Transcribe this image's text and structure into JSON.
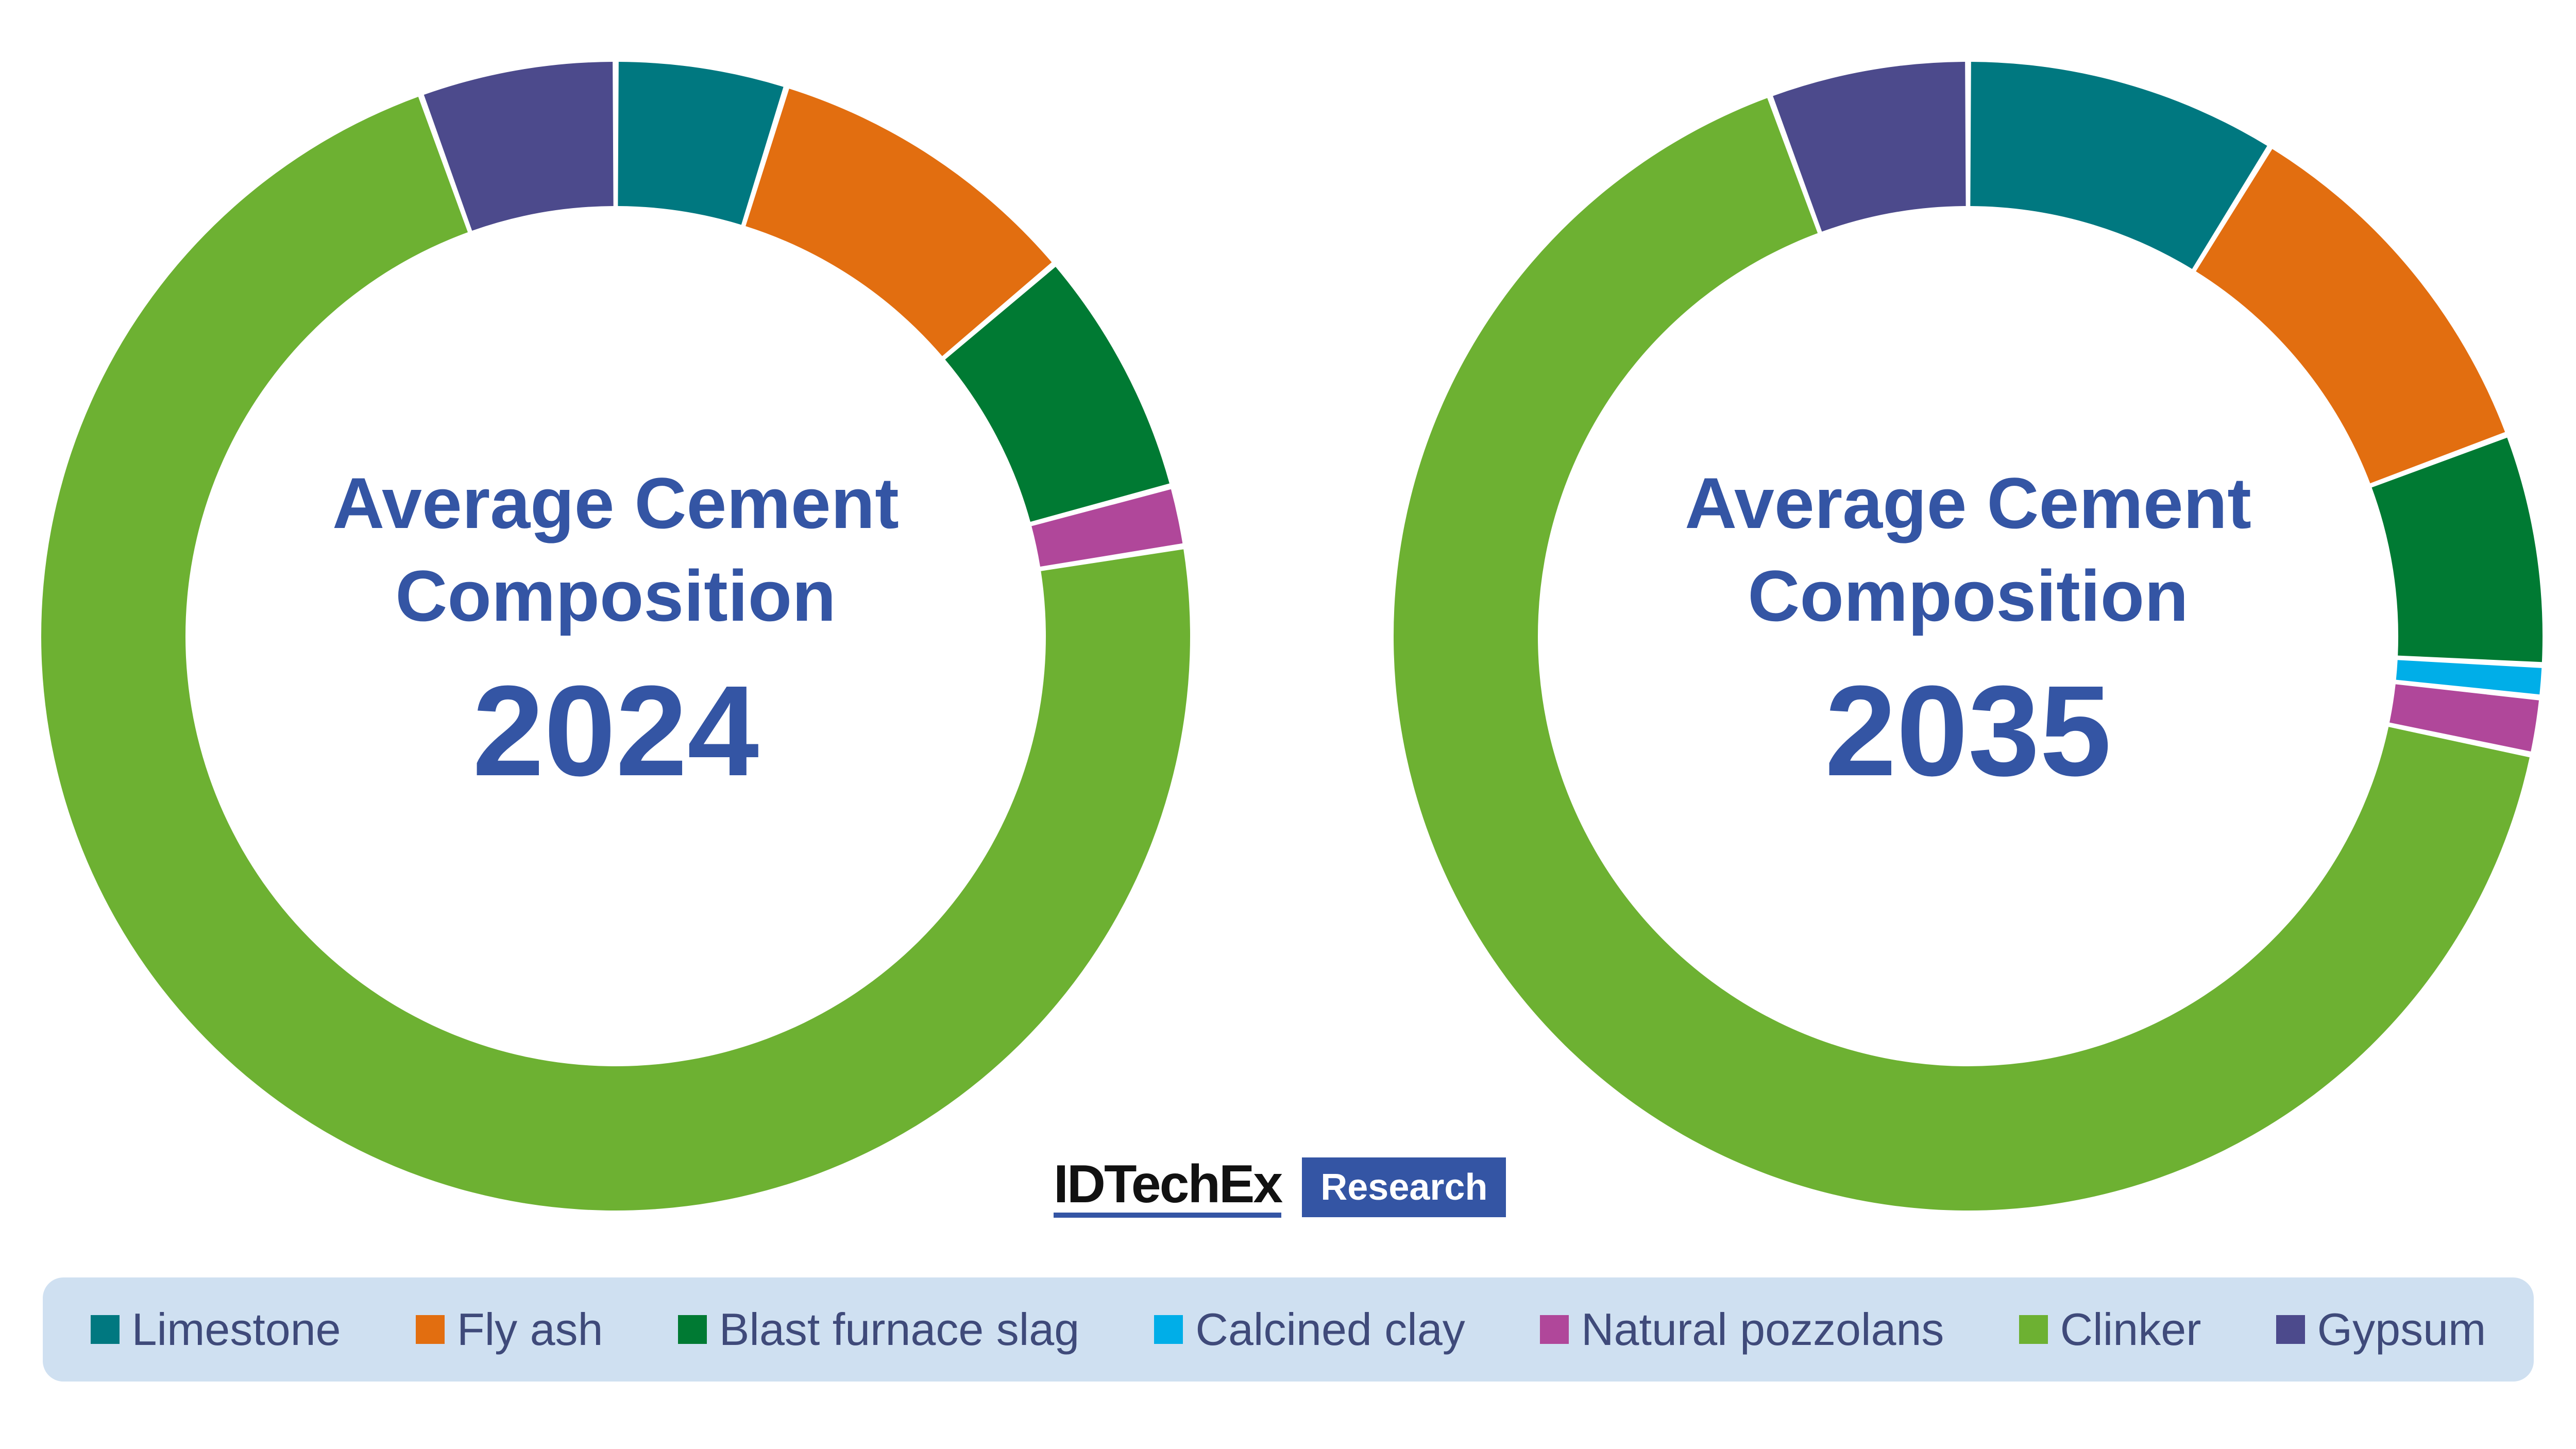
{
  "chart_data": [
    {
      "type": "pie",
      "title_lines": [
        "Average Cement",
        "Composition"
      ],
      "year": "2024",
      "categories": [
        "Limestone",
        "Fly ash",
        "Blast furnace slag",
        "Calcined clay",
        "Natural pozzolans",
        "Clinker",
        "Gypsum"
      ],
      "values": [
        4.8,
        9.0,
        7.0,
        0.0,
        1.7,
        72.0,
        5.5
      ],
      "colors": [
        "#007880",
        "#e26e10",
        "#007a33",
        "#00aee8",
        "#b0479a",
        "#6db132",
        "#4c4a8c"
      ]
    },
    {
      "type": "pie",
      "title_lines": [
        "Average Cement",
        "Composition"
      ],
      "year": "2035",
      "categories": [
        "Limestone",
        "Fly ash",
        "Blast furnace slag",
        "Calcined clay",
        "Natural pozzolans",
        "Clinker",
        "Gypsum"
      ],
      "values": [
        8.8,
        10.5,
        6.5,
        0.9,
        1.6,
        66.1,
        5.6
      ],
      "colors": [
        "#007880",
        "#e26e10",
        "#007a33",
        "#00aee8",
        "#b0479a",
        "#6db132",
        "#4c4a8c"
      ]
    }
  ],
  "legend": [
    {
      "label": "Limestone",
      "color": "#007880"
    },
    {
      "label": "Fly ash",
      "color": "#e26e10"
    },
    {
      "label": "Blast furnace slag",
      "color": "#007a33"
    },
    {
      "label": "Calcined clay",
      "color": "#00aee8"
    },
    {
      "label": "Natural pozzolans",
      "color": "#b0479a"
    },
    {
      "label": "Clinker",
      "color": "#6db132"
    },
    {
      "label": "Gypsum",
      "color": "#4c4a8c"
    }
  ],
  "branding": {
    "name": "IDTechEx",
    "tag": "Research"
  }
}
